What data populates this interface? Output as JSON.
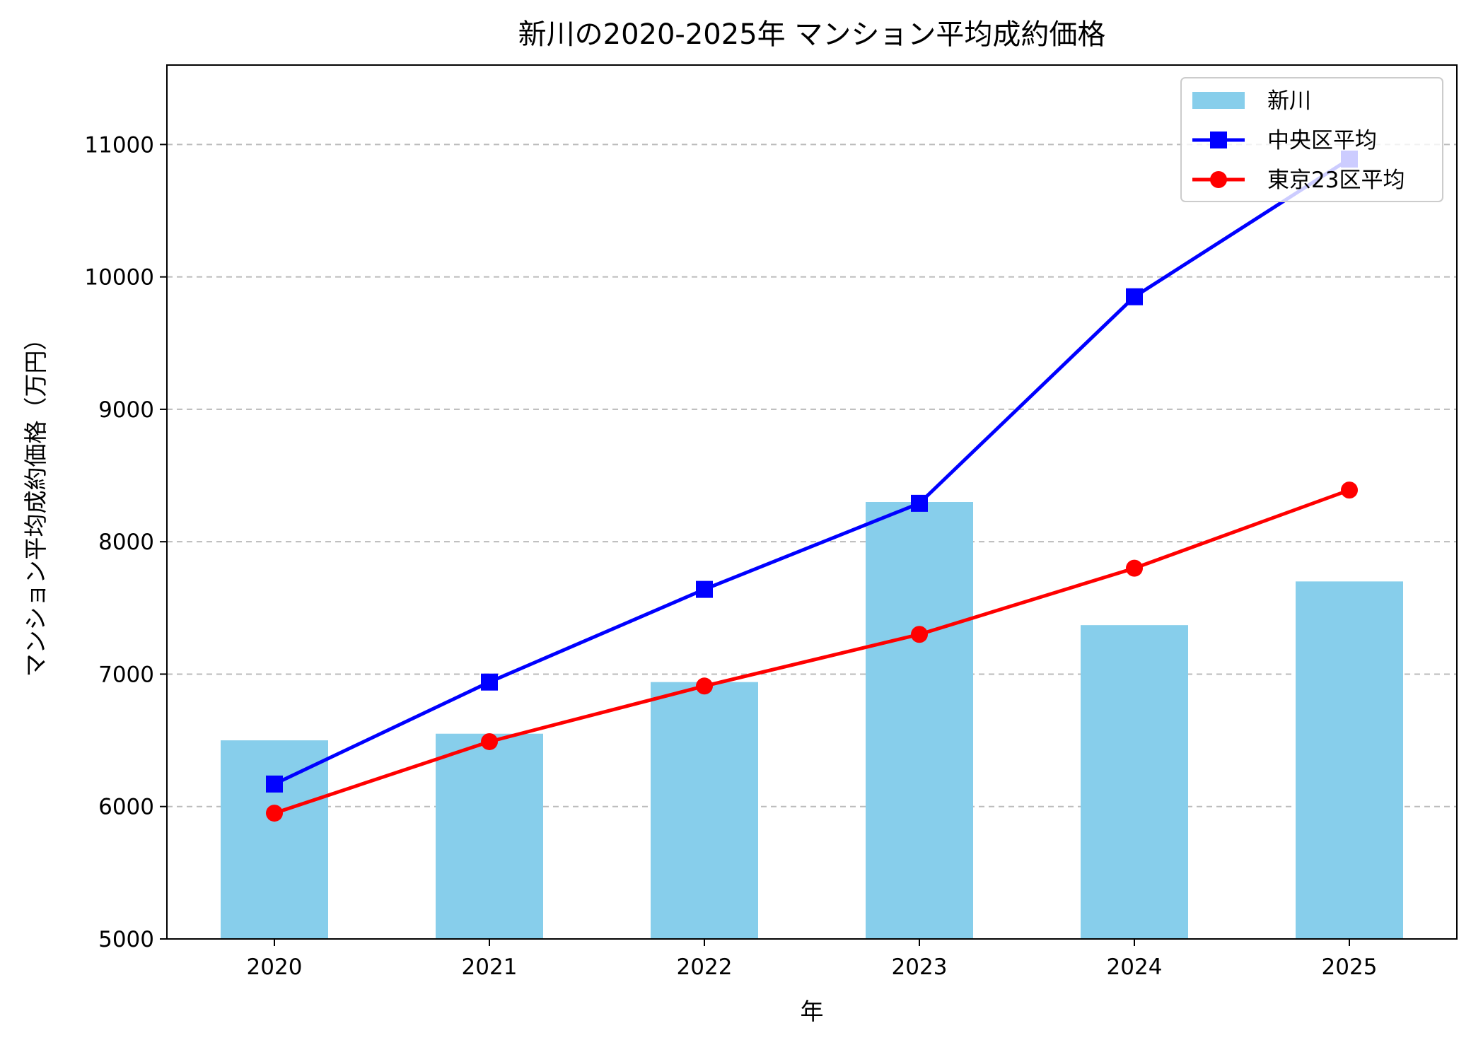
{
  "chart_data": {
    "type": "bar+line",
    "title": "新川の2020-2025年 マンション平均成約価格",
    "xlabel": "年",
    "ylabel": "マンション平均成約価格（万円）",
    "categories": [
      "2020",
      "2021",
      "2022",
      "2023",
      "2024",
      "2025"
    ],
    "ylim": [
      5000,
      11600
    ],
    "yticks": [
      5000,
      6000,
      7000,
      8000,
      9000,
      10000,
      11000
    ],
    "grid": {
      "y": true,
      "x": false,
      "style": "dashed"
    },
    "legend_position": "top-right",
    "series": [
      {
        "name": "新川",
        "kind": "bar",
        "color": "#87CEEB",
        "values": [
          6500,
          6550,
          6940,
          8300,
          7370,
          7700
        ]
      },
      {
        "name": "中央区平均",
        "kind": "line",
        "marker": "square",
        "color": "#0000FF",
        "values": [
          6170,
          6940,
          7640,
          8290,
          9850,
          10890
        ]
      },
      {
        "name": "東京23区平均",
        "kind": "line",
        "marker": "circle",
        "color": "#FF0000",
        "values": [
          5950,
          6490,
          6910,
          7300,
          7800,
          8390
        ]
      }
    ]
  }
}
